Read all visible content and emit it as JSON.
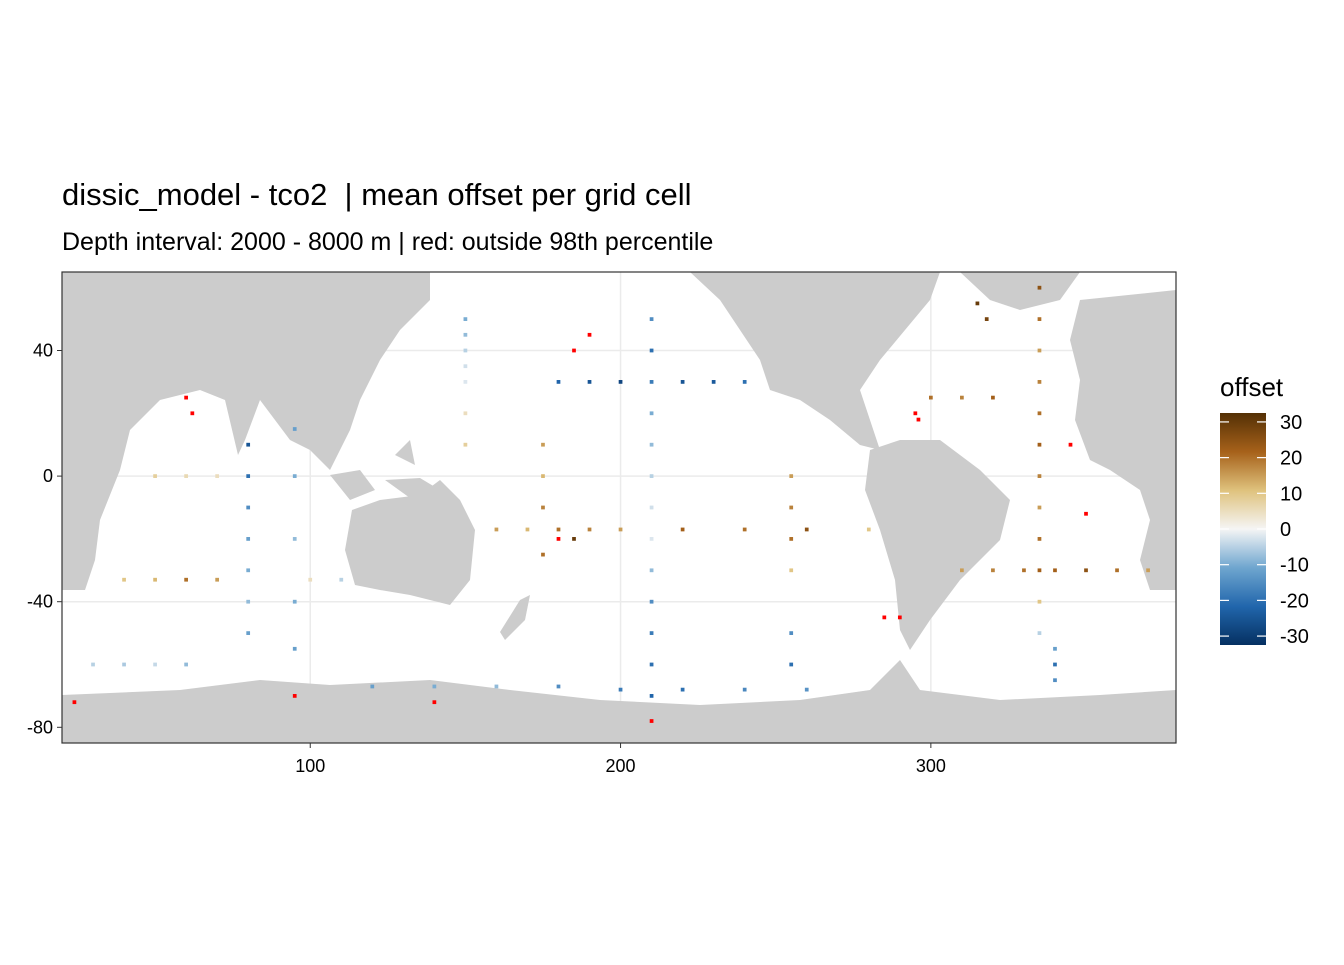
{
  "chart_data": {
    "type": "heatmap-map",
    "title": "dissic_model - tco2  | mean offset per grid cell",
    "subtitle": "Depth interval: 2000 - 8000 m | red: outside 98th percentile",
    "xlim": [
      20,
      379
    ],
    "ylim": [
      -85,
      65
    ],
    "xticks": [
      100,
      200,
      300
    ],
    "yticks": [
      -80,
      -40,
      0,
      40
    ],
    "grid": true,
    "legend_title": "offset",
    "colorlim": [
      -32.5,
      32.5
    ],
    "colorticks": [
      30,
      20,
      10,
      0,
      -10,
      -20,
      -30
    ],
    "colorscale": [
      "#053061",
      "#2166ac",
      "#6fa6cf",
      "#f5f5f5",
      "#dfc27d",
      "#a6611a",
      "#543005"
    ],
    "land_color": "#cccccc",
    "outlier_color": "#ff0000",
    "x": [
      210,
      210,
      210,
      210,
      210,
      210,
      210,
      210,
      210,
      210,
      210,
      210,
      210,
      180,
      190,
      200,
      220,
      230,
      240,
      160,
      170,
      180,
      190,
      200,
      220,
      240,
      260,
      280,
      120,
      140,
      160,
      180,
      200,
      220,
      240,
      260,
      80,
      80,
      80,
      80,
      80,
      80,
      80,
      95,
      95,
      95,
      95,
      95,
      335,
      335,
      335,
      335,
      335,
      335,
      335,
      335,
      335,
      335,
      335,
      335,
      310,
      320,
      330,
      340,
      350,
      360,
      370,
      300,
      310,
      320,
      255,
      255,
      255,
      255,
      255,
      255,
      40,
      50,
      60,
      70,
      100,
      110,
      150,
      150,
      150,
      150,
      150,
      150,
      150,
      30,
      40,
      50,
      60,
      340,
      340,
      340,
      50,
      60,
      70,
      175,
      175,
      175,
      175,
      315,
      318,
      185
    ],
    "y": [
      50,
      40,
      30,
      20,
      10,
      0,
      -10,
      -20,
      -30,
      -40,
      -50,
      -60,
      -70,
      30,
      30,
      30,
      30,
      30,
      30,
      -17,
      -17,
      -17,
      -17,
      -17,
      -17,
      -17,
      -17,
      -17,
      -67,
      -67,
      -67,
      -67,
      -68,
      -68,
      -68,
      -68,
      10,
      0,
      -10,
      -20,
      -30,
      -40,
      -50,
      15,
      0,
      -20,
      -40,
      -55,
      60,
      50,
      40,
      30,
      20,
      10,
      0,
      -10,
      -20,
      -30,
      -40,
      -50,
      -30,
      -30,
      -30,
      -30,
      -30,
      -30,
      -30,
      25,
      25,
      25,
      0,
      -10,
      -20,
      -30,
      -50,
      -60,
      -33,
      -33,
      -33,
      -33,
      -33,
      -33,
      50,
      45,
      40,
      35,
      30,
      20,
      10,
      -60,
      -60,
      -60,
      -60,
      -65,
      -60,
      -55,
      0,
      0,
      0,
      10,
      0,
      -10,
      -25,
      55,
      50,
      -20
    ],
    "values": [
      -15,
      -20,
      -18,
      -10,
      -8,
      -5,
      -3,
      -2,
      -8,
      -15,
      -18,
      -20,
      -22,
      -22,
      -25,
      -28,
      -25,
      -24,
      -20,
      15,
      12,
      20,
      18,
      15,
      22,
      20,
      25,
      10,
      -12,
      -10,
      -8,
      -15,
      -18,
      -20,
      -16,
      -14,
      -25,
      -20,
      -15,
      -12,
      -10,
      -8,
      -12,
      -12,
      -10,
      -8,
      -10,
      -12,
      25,
      20,
      15,
      18,
      20,
      22,
      18,
      15,
      20,
      22,
      10,
      -5,
      15,
      18,
      20,
      22,
      25,
      20,
      15,
      20,
      18,
      22,
      15,
      18,
      20,
      10,
      -15,
      -20,
      10,
      12,
      20,
      15,
      5,
      -5,
      -10,
      -8,
      -5,
      -3,
      -2,
      5,
      8,
      -5,
      -6,
      -4,
      -8,
      -15,
      -20,
      -12,
      8,
      6,
      5,
      15,
      12,
      18,
      20,
      30,
      28,
      30
    ],
    "outliers": {
      "x": [
        62,
        60,
        295,
        296,
        210,
        24,
        140,
        190,
        185,
        345,
        350,
        290,
        285,
        180,
        95
      ],
      "y": [
        20,
        25,
        20,
        18,
        -78,
        -72,
        -72,
        45,
        40,
        10,
        -12,
        -45,
        -45,
        -20,
        -70
      ]
    }
  }
}
